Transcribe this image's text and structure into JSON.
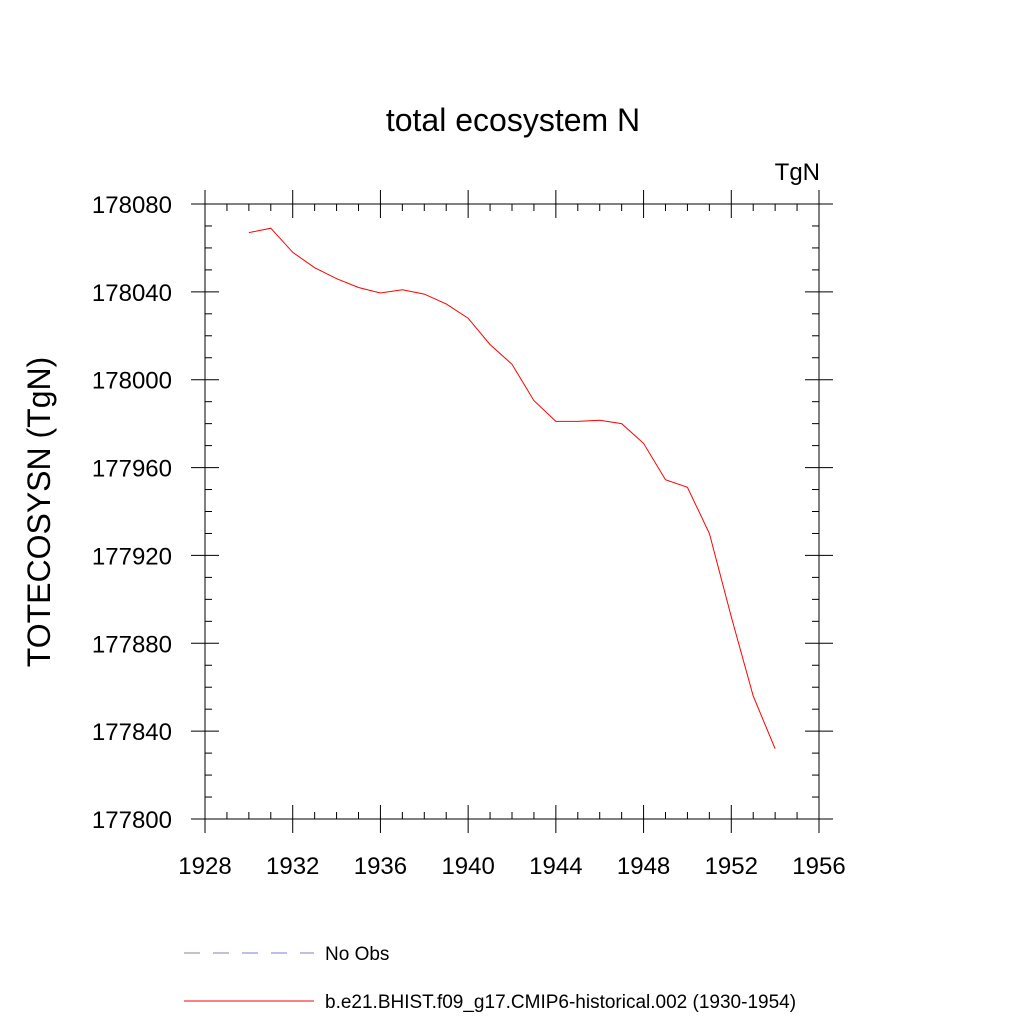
{
  "chart_data": {
    "type": "line",
    "title": "total ecosystem N",
    "units_label": "TgN",
    "xlabel": "",
    "ylabel": "TOTECOSYSN  (TgN)",
    "xlim": [
      1928,
      1956
    ],
    "ylim": [
      177800,
      178080
    ],
    "x_ticks": [
      1928,
      1932,
      1936,
      1940,
      1944,
      1948,
      1952,
      1956
    ],
    "y_ticks": [
      177800,
      177840,
      177880,
      177920,
      177960,
      178000,
      178040,
      178080
    ],
    "x_tick_labels": [
      "1928",
      "1932",
      "1936",
      "1940",
      "1944",
      "1948",
      "1952",
      "1956"
    ],
    "y_tick_labels": [
      "177800",
      "177840",
      "177880",
      "177920",
      "177960",
      "178000",
      "178040",
      "178080"
    ],
    "x_minor_step": 1,
    "y_minor_step": 10,
    "grid": false,
    "legend_position": "bottom",
    "series": [
      {
        "name": "b.e21.BHIST.f09_g17.CMIP6-historical.002 (1930-1954)",
        "color": "#ff0000",
        "dash": "solid",
        "x": [
          1930,
          1931,
          1932,
          1933,
          1934,
          1935,
          1936,
          1937,
          1938,
          1939,
          1940,
          1941,
          1942,
          1943,
          1944,
          1945,
          1946,
          1947,
          1948,
          1949,
          1950,
          1951,
          1952,
          1953,
          1954
        ],
        "values": [
          178067,
          178069,
          178058,
          178051,
          178046,
          178042,
          178039.5,
          178041,
          178039,
          178034.5,
          178028,
          178016,
          178007,
          177990.5,
          177981,
          177981,
          177981.5,
          177980,
          177971,
          177954.5,
          177951,
          177930,
          177892,
          177856,
          177832
        ]
      }
    ],
    "legend": [
      {
        "label": "No Obs",
        "color": "#7f7fc8",
        "dash": "dashed"
      },
      {
        "label": "b.e21.BHIST.f09_g17.CMIP6-historical.002 (1930-1954)",
        "color": "#ff0000",
        "dash": "solid"
      }
    ]
  }
}
